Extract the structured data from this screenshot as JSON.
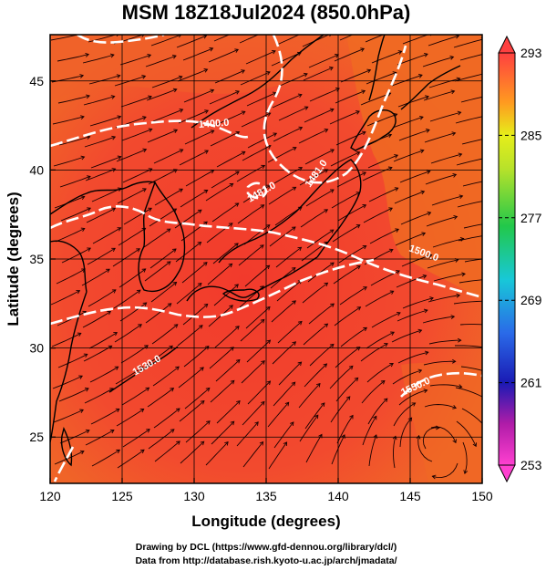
{
  "title": "MSM 18Z18Jul2024 (850.0hPa)",
  "x_axis": {
    "label": "Longitude (degrees)",
    "ticks": [
      "120",
      "125",
      "130",
      "135",
      "140",
      "145",
      "150"
    ]
  },
  "y_axis": {
    "label": "Latitude (degrees)",
    "ticks": [
      "25",
      "30",
      "35",
      "40",
      "45"
    ]
  },
  "colorbar": {
    "ticks": [
      "293",
      "285",
      "277",
      "269",
      "261",
      "253"
    ],
    "min": 253,
    "max": 293
  },
  "contour_labels": [
    "1400.0",
    "1481.0",
    "1481.0",
    "1530.0",
    "1500.0",
    "1550.0"
  ],
  "credits": [
    "Drawing by DCL (https://www.gfd-dennou.org/library/dcl/)",
    "Data from http://database.rish.kyoto-u.ac.jp/arch/jmadata/"
  ],
  "chart_data": {
    "type": "heatmap",
    "title": "MSM 18Z18Jul2024 (850.0hPa)",
    "xlabel": "Longitude (degrees)",
    "ylabel": "Latitude (degrees)",
    "xlim": [
      120,
      150
    ],
    "ylim": [
      22.4,
      47.6
    ],
    "x_ticks": [
      120,
      125,
      130,
      135,
      140,
      145,
      150
    ],
    "y_ticks": [
      25,
      30,
      35,
      40,
      45
    ],
    "colorbar": {
      "min": 253,
      "max": 293,
      "ticks": [
        293,
        285,
        277,
        269,
        261,
        253
      ]
    },
    "overlays": [
      "temperature shading",
      "geopotential height contours",
      "wind streamlines"
    ],
    "contour_labels": [
      "1400.0",
      "1481.0",
      "1481.0",
      "1530.0",
      "1500.0",
      "1550.0"
    ],
    "grid": true
  },
  "colors": {
    "warm_shading": "#f2462f",
    "orange_shading": "#f06a22",
    "cb_top": "#ff4040",
    "cb_yellow": "#e6ee1a",
    "cb_green": "#22c84a",
    "cb_cyan": "#18c8d8",
    "cb_blue": "#1d2fd6",
    "cb_bottom": "#ff40d0"
  }
}
